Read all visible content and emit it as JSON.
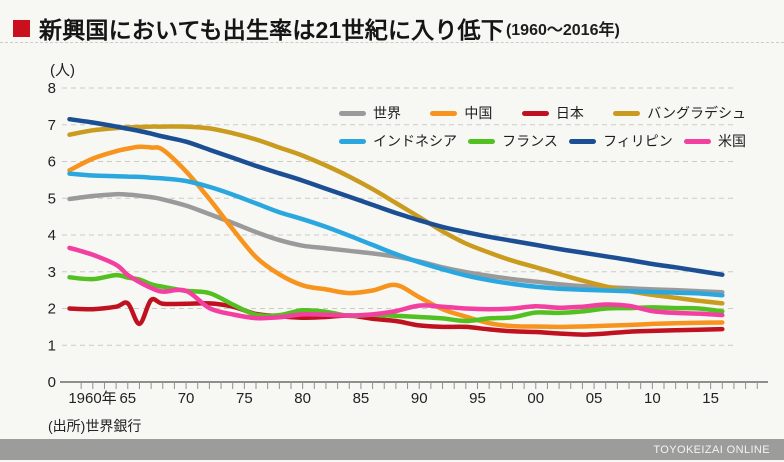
{
  "header": {
    "title": "新興国においても出生率は21世紀に入り低下",
    "range": "(1960～2016年)"
  },
  "chart_data": {
    "type": "line",
    "title": "新興国においても出生率は21世紀に入り低下(1960～2016年)",
    "unit_label": "(人)",
    "ylabel": "出生率(人)",
    "xlabel": "年",
    "ylim": [
      0,
      8
    ],
    "yticks": [
      0,
      1,
      2,
      3,
      4,
      5,
      6,
      7,
      8
    ],
    "grid": "dashed horizontal",
    "legend_position": "inside-top-right, two rows",
    "x_tick_labels": [
      "1960年",
      "65",
      "70",
      "75",
      "80",
      "85",
      "90",
      "95",
      "00",
      "05",
      "10",
      "15"
    ],
    "x_tick_years": [
      1960,
      1965,
      1970,
      1975,
      1980,
      1985,
      1990,
      1995,
      2000,
      2005,
      2010,
      2015
    ],
    "years": [
      1960,
      1962,
      1964,
      1965,
      1966,
      1967,
      1968,
      1970,
      1972,
      1974,
      1976,
      1978,
      1980,
      1982,
      1984,
      1986,
      1988,
      1990,
      1992,
      1994,
      1996,
      1998,
      2000,
      2002,
      2004,
      2006,
      2008,
      2010,
      2012,
      2014,
      2016
    ],
    "legend_rows": [
      [
        "世界",
        "中国",
        "日本",
        "バングラデシュ"
      ],
      [
        "インドネシア",
        "フランス",
        "フィリピン",
        "米国"
      ]
    ],
    "series": [
      {
        "name": "世界",
        "color": "#9a9a9a",
        "values": [
          4.98,
          5.06,
          5.11,
          5.1,
          5.07,
          5.03,
          4.97,
          4.8,
          4.57,
          4.33,
          4.08,
          3.86,
          3.71,
          3.64,
          3.57,
          3.5,
          3.41,
          3.28,
          3.12,
          2.99,
          2.89,
          2.8,
          2.73,
          2.66,
          2.61,
          2.58,
          2.55,
          2.52,
          2.5,
          2.47,
          2.44
        ]
      },
      {
        "name": "中国",
        "color": "#f7941d",
        "values": [
          5.76,
          6.08,
          6.28,
          6.35,
          6.4,
          6.38,
          6.32,
          5.73,
          4.98,
          4.16,
          3.4,
          2.93,
          2.63,
          2.52,
          2.42,
          2.49,
          2.64,
          2.31,
          1.98,
          1.78,
          1.6,
          1.52,
          1.51,
          1.5,
          1.51,
          1.53,
          1.55,
          1.58,
          1.6,
          1.61,
          1.62
        ]
      },
      {
        "name": "日本",
        "color": "#bf1120",
        "values": [
          2.0,
          1.98,
          2.05,
          2.14,
          1.58,
          2.23,
          2.13,
          2.13,
          2.14,
          2.05,
          1.85,
          1.79,
          1.75,
          1.77,
          1.81,
          1.72,
          1.66,
          1.54,
          1.5,
          1.5,
          1.43,
          1.38,
          1.36,
          1.32,
          1.29,
          1.32,
          1.37,
          1.39,
          1.41,
          1.42,
          1.44
        ]
      },
      {
        "name": "バングラデシュ",
        "color": "#c99b1e",
        "values": [
          6.73,
          6.85,
          6.91,
          6.93,
          6.94,
          6.95,
          6.95,
          6.95,
          6.9,
          6.77,
          6.6,
          6.38,
          6.16,
          5.89,
          5.59,
          5.25,
          4.87,
          4.49,
          4.1,
          3.77,
          3.52,
          3.3,
          3.12,
          2.94,
          2.76,
          2.6,
          2.47,
          2.37,
          2.29,
          2.21,
          2.14
        ]
      },
      {
        "name": "インドネシア",
        "color": "#2ba7e0",
        "values": [
          5.67,
          5.62,
          5.6,
          5.59,
          5.58,
          5.56,
          5.54,
          5.47,
          5.31,
          5.1,
          4.86,
          4.62,
          4.43,
          4.22,
          3.98,
          3.73,
          3.48,
          3.26,
          3.07,
          2.9,
          2.77,
          2.67,
          2.59,
          2.54,
          2.51,
          2.49,
          2.47,
          2.45,
          2.43,
          2.41,
          2.36
        ]
      },
      {
        "name": "フランス",
        "color": "#53c021",
        "values": [
          2.85,
          2.8,
          2.91,
          2.84,
          2.79,
          2.66,
          2.59,
          2.48,
          2.42,
          2.11,
          1.83,
          1.82,
          1.95,
          1.91,
          1.8,
          1.83,
          1.8,
          1.77,
          1.73,
          1.66,
          1.73,
          1.76,
          1.89,
          1.88,
          1.92,
          2.0,
          2.01,
          2.03,
          2.01,
          2.0,
          1.92
        ]
      },
      {
        "name": "フィリピン",
        "color": "#1b4e93",
        "values": [
          7.15,
          7.06,
          6.95,
          6.89,
          6.83,
          6.76,
          6.68,
          6.54,
          6.32,
          6.1,
          5.88,
          5.68,
          5.48,
          5.26,
          5.04,
          4.82,
          4.6,
          4.4,
          4.22,
          4.08,
          3.95,
          3.84,
          3.73,
          3.62,
          3.52,
          3.42,
          3.32,
          3.21,
          3.12,
          3.02,
          2.92
        ]
      },
      {
        "name": "米国",
        "color": "#f23fa0",
        "values": [
          3.65,
          3.46,
          3.19,
          2.91,
          2.72,
          2.56,
          2.46,
          2.48,
          2.01,
          1.84,
          1.74,
          1.76,
          1.84,
          1.83,
          1.81,
          1.84,
          1.93,
          2.08,
          2.05,
          2.0,
          1.98,
          2.0,
          2.06,
          2.02,
          2.05,
          2.11,
          2.07,
          1.93,
          1.88,
          1.86,
          1.82
        ]
      }
    ]
  },
  "source": "(出所)世界銀行",
  "footer": {
    "brand": "TOYOKEIZAI ONLINE"
  },
  "colors": {
    "accent_red": "#c9101c",
    "grid": "#cbcbc6",
    "axis": "#8f8f8d",
    "footer_bar": "#9c9c9a",
    "background": "#f7f7f4"
  }
}
